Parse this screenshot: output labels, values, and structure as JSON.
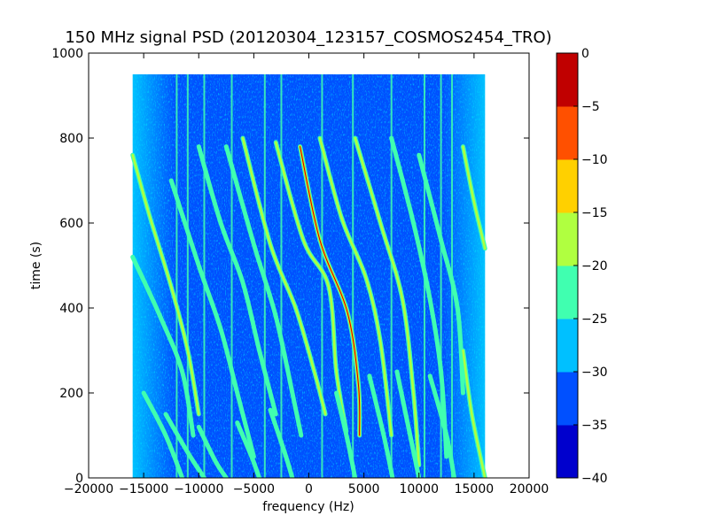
{
  "chart_data": {
    "type": "heatmap",
    "title": "150 MHz signal PSD (20120304_123157_COSMOS2454_TRO)",
    "xlabel": "frequency (Hz)",
    "ylabel": "time (s)",
    "xlim": [
      -20000,
      20000
    ],
    "ylim": [
      0,
      1000
    ],
    "xticks": [
      "−20000",
      "−15000",
      "−10000",
      "−5000",
      "0",
      "5000",
      "10000",
      "15000",
      "20000"
    ],
    "xtick_values": [
      -20000,
      -15000,
      -10000,
      -5000,
      0,
      5000,
      10000,
      15000,
      20000
    ],
    "yticks": [
      "0",
      "200",
      "400",
      "600",
      "800",
      "1000"
    ],
    "ytick_values": [
      0,
      200,
      400,
      600,
      800,
      1000
    ],
    "data_extent": {
      "x": [
        -16000,
        16000
      ],
      "y": [
        0,
        950
      ]
    },
    "colormap": "jet",
    "colorbar": {
      "levels": [
        -40,
        -35,
        -30,
        -25,
        -20,
        -15,
        -10,
        -5,
        0
      ],
      "labels": [
        "−40",
        "−35",
        "−30",
        "−25",
        "−20",
        "−15",
        "−10",
        "−5",
        "0"
      ],
      "colors": [
        "#0000cd",
        "#0050ff",
        "#00c0ff",
        "#40ffb0",
        "#b0ff40",
        "#ffd000",
        "#ff5000",
        "#c00000"
      ]
    },
    "background_levels": {
      "edge": "#00c0ff",
      "center": "#0050ff"
    },
    "traces": [
      {
        "level": -15,
        "points": [
          [
            -800,
            780
          ],
          [
            1000,
            560
          ],
          [
            3500,
            390
          ],
          [
            4500,
            220
          ],
          [
            4600,
            100
          ]
        ]
      },
      {
        "level": -20,
        "points": [
          [
            -6000,
            800
          ],
          [
            -3500,
            550
          ],
          [
            -1200,
            400
          ],
          [
            500,
            250
          ],
          [
            1500,
            150
          ]
        ]
      },
      {
        "level": -20,
        "points": [
          [
            -3000,
            790
          ],
          [
            -500,
            560
          ],
          [
            1800,
            450
          ],
          [
            2500,
            250
          ],
          [
            3400,
            110
          ]
        ]
      },
      {
        "level": -20,
        "points": [
          [
            1000,
            800
          ],
          [
            3000,
            610
          ],
          [
            5200,
            470
          ],
          [
            6500,
            320
          ],
          [
            7500,
            100
          ]
        ]
      },
      {
        "level": -20,
        "points": [
          [
            4200,
            800
          ],
          [
            6500,
            600
          ],
          [
            8500,
            420
          ],
          [
            9500,
            200
          ],
          [
            10000,
            30
          ]
        ]
      },
      {
        "level": -25,
        "points": [
          [
            -7500,
            780
          ],
          [
            -5000,
            550
          ],
          [
            -3000,
            380
          ],
          [
            -1500,
            200
          ],
          [
            -700,
            100
          ]
        ]
      },
      {
        "level": -25,
        "points": [
          [
            -10000,
            780
          ],
          [
            -8000,
            600
          ],
          [
            -6000,
            460
          ],
          [
            -4500,
            300
          ],
          [
            -3000,
            150
          ]
        ]
      },
      {
        "level": -25,
        "points": [
          [
            -12500,
            700
          ],
          [
            -10000,
            500
          ],
          [
            -8000,
            350
          ],
          [
            -6500,
            200
          ],
          [
            -5000,
            50
          ]
        ]
      },
      {
        "level": -25,
        "points": [
          [
            7500,
            800
          ],
          [
            9500,
            600
          ],
          [
            11000,
            420
          ],
          [
            12000,
            250
          ],
          [
            12500,
            50
          ]
        ]
      },
      {
        "level": -25,
        "points": [
          [
            10000,
            760
          ],
          [
            12000,
            560
          ],
          [
            13500,
            400
          ],
          [
            14000,
            200
          ]
        ]
      },
      {
        "level": -20,
        "points": [
          [
            -16000,
            760
          ],
          [
            -14500,
            620
          ],
          [
            -12500,
            450
          ],
          [
            -11000,
            300
          ],
          [
            -10000,
            150
          ]
        ]
      },
      {
        "level": -25,
        "points": [
          [
            -16000,
            520
          ],
          [
            -13500,
            380
          ],
          [
            -11500,
            250
          ],
          [
            -10500,
            100
          ]
        ]
      },
      {
        "level": -20,
        "points": [
          [
            14000,
            780
          ],
          [
            15000,
            650
          ],
          [
            16000,
            540
          ]
        ]
      },
      {
        "level": -20,
        "points": [
          [
            14000,
            300
          ],
          [
            14800,
            150
          ],
          [
            16000,
            0
          ]
        ]
      },
      {
        "level": -25,
        "points": [
          [
            -15000,
            200
          ],
          [
            -13000,
            100
          ],
          [
            -11500,
            0
          ]
        ]
      },
      {
        "level": -25,
        "points": [
          [
            -13000,
            150
          ],
          [
            -11000,
            60
          ],
          [
            -9500,
            0
          ]
        ]
      },
      {
        "level": -25,
        "points": [
          [
            -10000,
            120
          ],
          [
            -8500,
            40
          ],
          [
            -7500,
            0
          ]
        ]
      },
      {
        "level": -25,
        "points": [
          [
            -6500,
            130
          ],
          [
            -5200,
            50
          ],
          [
            -4500,
            0
          ]
        ]
      },
      {
        "level": -25,
        "points": [
          [
            -3500,
            160
          ],
          [
            -2200,
            60
          ],
          [
            -1500,
            0
          ]
        ]
      },
      {
        "level": -25,
        "points": [
          [
            2500,
            200
          ],
          [
            3500,
            90
          ],
          [
            4200,
            0
          ]
        ]
      },
      {
        "level": -25,
        "points": [
          [
            5500,
            240
          ],
          [
            6800,
            100
          ],
          [
            7600,
            0
          ]
        ]
      },
      {
        "level": -25,
        "points": [
          [
            8000,
            250
          ],
          [
            9200,
            100
          ],
          [
            10000,
            0
          ]
        ]
      },
      {
        "level": -25,
        "points": [
          [
            11000,
            240
          ],
          [
            12500,
            100
          ],
          [
            13200,
            0
          ]
        ]
      }
    ],
    "vertical_lines": [
      {
        "x": -12000,
        "level": -25
      },
      {
        "x": -11000,
        "level": -25
      },
      {
        "x": -9500,
        "level": -25
      },
      {
        "x": -7000,
        "level": -25
      },
      {
        "x": -4000,
        "level": -25
      },
      {
        "x": -2500,
        "level": -25
      },
      {
        "x": 1200,
        "level": -25
      },
      {
        "x": 4000,
        "level": -25
      },
      {
        "x": 7500,
        "level": -25
      },
      {
        "x": 10500,
        "level": -25
      },
      {
        "x": 12000,
        "level": -25
      },
      {
        "x": 13000,
        "level": -25
      }
    ]
  }
}
